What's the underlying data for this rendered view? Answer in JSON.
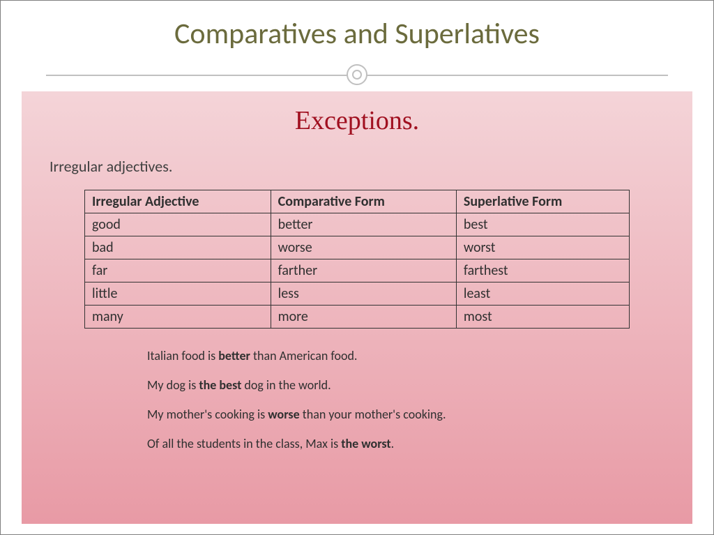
{
  "title": "Comparatives and Superlatives",
  "subtitle": "Exceptions.",
  "section_label": "Irregular adjectives.",
  "table": {
    "headers": [
      "Irregular Adjective",
      "Comparative Form",
      "Superlative Form"
    ],
    "rows": [
      [
        "good",
        "better",
        "best"
      ],
      [
        "bad",
        "worse",
        "worst"
      ],
      [
        "far",
        "farther",
        "farthest"
      ],
      [
        "little",
        "less",
        "least"
      ],
      [
        "many",
        "more",
        "most"
      ]
    ]
  },
  "examples": [
    {
      "pre": "Italian food is ",
      "bold": "better",
      "post": " than American food."
    },
    {
      "pre": "My dog is ",
      "bold": "the best",
      "post": " dog in the world."
    },
    {
      "pre": "My mother's cooking is ",
      "bold": "worse",
      "post": " than your mother's cooking."
    },
    {
      "pre": "Of all the students in the class, Max is ",
      "bold": "the worst",
      "post": "."
    }
  ],
  "colors": {
    "title": "#6b6b3d",
    "subtitle": "#a01020",
    "gradient_top": "#f4d4d8",
    "gradient_bottom": "#e89aa5",
    "divider": "#c0c0c0",
    "text": "#303030",
    "border": "#333333"
  },
  "fonts": {
    "title_size": 42,
    "subtitle_size": 38,
    "section_size": 22,
    "table_size": 20,
    "example_size": 18
  }
}
